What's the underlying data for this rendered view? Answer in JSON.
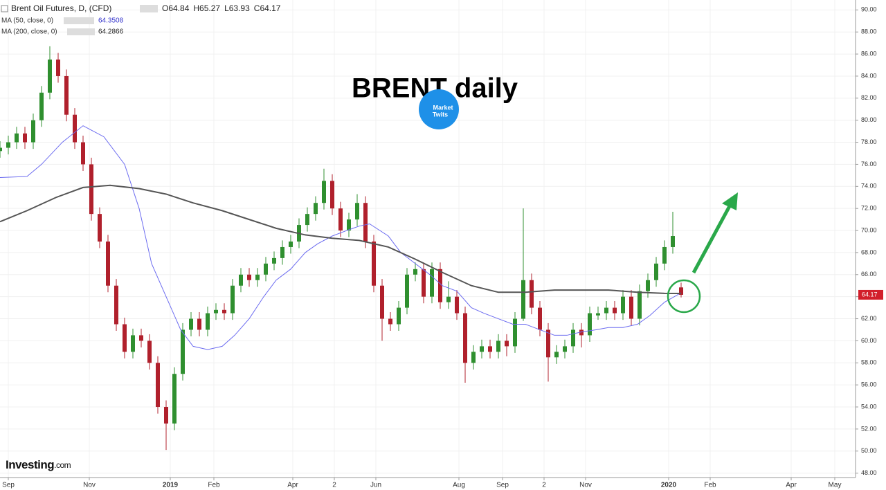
{
  "chart_data": {
    "type": "candlestick",
    "title": "BRENT daily",
    "symbol": "Brent Oil Futures, D, (CFD)",
    "ohlc_text": [
      "O64.84",
      "H65.27",
      "L63.93",
      "C64.17"
    ],
    "watermark_lines": [
      "Market",
      "Twits"
    ],
    "source_parts": [
      "Investing",
      ".com"
    ],
    "up_color": "#2f8f2f",
    "down_color": "#b0202c",
    "x": [
      0,
      4,
      8,
      12,
      16,
      20,
      24,
      28,
      32,
      36,
      40,
      44,
      48,
      52,
      56,
      60,
      64,
      68,
      72,
      76,
      80,
      84,
      88,
      92,
      96,
      100,
      104,
      108,
      112,
      116,
      120,
      124,
      128,
      132,
      136,
      140,
      144,
      148,
      152,
      156,
      160,
      164,
      168,
      172,
      176,
      180,
      184,
      188,
      192,
      196,
      200,
      204,
      208,
      212,
      216,
      220,
      224,
      228,
      232,
      236,
      240,
      244,
      248,
      252,
      256,
      260,
      264,
      268,
      272,
      276,
      280,
      284,
      288,
      292,
      296,
      300,
      304,
      308,
      312,
      316,
      320,
      324,
      328
    ],
    "open": [
      77.2,
      77.5,
      78,
      78.8,
      78,
      80,
      82.5,
      85.5,
      84,
      80.5,
      78,
      76,
      71.5,
      69,
      65,
      61.5,
      59,
      60.5,
      60,
      58,
      54,
      52.5,
      57,
      61,
      62,
      61,
      62.5,
      62.8,
      62.5,
      65,
      66,
      65.5,
      66,
      67,
      67.5,
      68.5,
      69,
      70.5,
      71.5,
      72.5,
      74.5,
      72,
      70,
      71,
      72.5,
      69,
      65,
      62,
      61.5,
      63,
      66,
      66.5,
      64,
      66.5,
      63.5,
      64,
      62.5,
      58,
      59,
      59.5,
      59,
      60,
      59.5,
      62,
      65.5,
      63,
      61,
      58.5,
      59,
      59.5,
      61,
      60.5,
      62.3,
      62.5,
      63,
      62.5,
      64,
      62,
      64.5,
      65.5,
      67,
      68.5,
      64.84
    ],
    "high": [
      78.1,
      78.6,
      79.4,
      79.4,
      80.6,
      83.1,
      86.7,
      86.1,
      84.6,
      81.1,
      78.6,
      76.6,
      72.1,
      69.6,
      65.6,
      62.1,
      61.1,
      61.1,
      60.6,
      58.6,
      54.6,
      57.6,
      61.6,
      62.6,
      62.6,
      63.1,
      63.4,
      63.4,
      65.6,
      66.6,
      66.6,
      66.6,
      67.6,
      68.1,
      69.1,
      69.6,
      71.1,
      72.1,
      73.1,
      75.6,
      75.1,
      72.6,
      71.6,
      73.3,
      73.1,
      69.6,
      65.6,
      62.6,
      63.6,
      66.6,
      67.1,
      67.1,
      67.1,
      67.1,
      65.4,
      64.6,
      63.1,
      59.6,
      60.1,
      60.1,
      60.6,
      60.6,
      62.6,
      72,
      66.1,
      63.6,
      61.6,
      59.6,
      60.1,
      61.6,
      61.6,
      63.1,
      63.1,
      63.6,
      63.6,
      64.6,
      64.6,
      65.1,
      66.1,
      67.6,
      69.1,
      71.7,
      65.27
    ],
    "low": [
      76.6,
      76.9,
      77.4,
      77.4,
      77.4,
      79.4,
      81.9,
      83.4,
      79.9,
      77.4,
      75.4,
      70.9,
      68.4,
      64.4,
      60.9,
      58.4,
      58.4,
      59.4,
      57.4,
      53.4,
      50.1,
      51.9,
      56.4,
      60.4,
      60.4,
      60.4,
      61.9,
      61.9,
      61.9,
      64.4,
      64.9,
      64.9,
      65.4,
      66.4,
      66.9,
      67.9,
      68.4,
      69.9,
      70.9,
      71.9,
      71.4,
      69.4,
      69.4,
      70.4,
      68.4,
      64.4,
      60,
      60.9,
      60.9,
      62.4,
      65.4,
      63.4,
      63.4,
      62.9,
      62.9,
      61.9,
      56.2,
      57.4,
      58.4,
      58.4,
      58.4,
      58.6,
      58.9,
      61.8,
      62.4,
      60.4,
      56.3,
      57.9,
      58.4,
      58.9,
      59.4,
      59.9,
      61.9,
      61.9,
      61.9,
      61.9,
      61.4,
      61.4,
      63.9,
      64.9,
      66.4,
      67.9,
      63.93
    ],
    "close": [
      77.5,
      78,
      78.8,
      78,
      80,
      82.5,
      85.5,
      84,
      80.5,
      78,
      76,
      71.5,
      69,
      65,
      61.5,
      59,
      60.5,
      60,
      58,
      54,
      52.5,
      57,
      61,
      62,
      61,
      62.5,
      62.8,
      62.5,
      65,
      66,
      65.5,
      66,
      67,
      67.5,
      68.5,
      69,
      70.5,
      71.5,
      72.5,
      74.5,
      72,
      70,
      71,
      72.5,
      69,
      65,
      62,
      61.5,
      63,
      66,
      66.5,
      64,
      66.5,
      63.5,
      64,
      62.5,
      58,
      59,
      59.5,
      59,
      60,
      59.5,
      62,
      65.5,
      63,
      61,
      58.5,
      59,
      59.5,
      61,
      60.5,
      62.5,
      62.5,
      63,
      62.5,
      64,
      62,
      64.5,
      65.5,
      67,
      68.5,
      69.5,
      64.17
    ],
    "series": [
      {
        "name": "MA (50, close, 0)",
        "color": "#6b6bf0",
        "value_label": "64.3508",
        "width": 1,
        "x": [
          0,
          13,
          20,
          30,
          40,
          50,
          60,
          67,
          73,
          80,
          87,
          93,
          100,
          107,
          113,
          120,
          127,
          133,
          140,
          147,
          153,
          160,
          167,
          173,
          178,
          187,
          193,
          200,
          207,
          213,
          220,
          227,
          233,
          240,
          247,
          253,
          260,
          267,
          273,
          280,
          287,
          293,
          300,
          307,
          313,
          320,
          328
        ],
        "values": [
          74.8,
          74.9,
          76,
          78,
          79.5,
          78.5,
          76,
          72,
          67,
          64,
          61,
          59.5,
          59.2,
          59.5,
          60.5,
          62,
          64,
          65.5,
          66.5,
          68,
          68.8,
          69.5,
          70,
          70.4,
          70.6,
          69.5,
          68,
          67,
          66,
          65,
          64.5,
          63,
          62.5,
          62,
          61.5,
          61.5,
          61,
          60.5,
          60.5,
          60.8,
          61,
          61.2,
          61.2,
          61.5,
          62.3,
          63.5,
          64.35
        ]
      },
      {
        "name": "MA (200, close, 0)",
        "color": "#555555",
        "value_label": "64.2866",
        "width": 2,
        "x": [
          0,
          13,
          27,
          40,
          53,
          67,
          80,
          93,
          107,
          120,
          133,
          147,
          160,
          173,
          187,
          200,
          213,
          227,
          240,
          253,
          267,
          280,
          293,
          307,
          320,
          328
        ],
        "values": [
          70.8,
          71.8,
          73,
          73.9,
          74.1,
          73.8,
          73.3,
          72.5,
          71.8,
          71,
          70.2,
          69.6,
          69.3,
          69.1,
          68.5,
          67.4,
          66.2,
          65,
          64.4,
          64.4,
          64.6,
          64.6,
          64.6,
          64.4,
          64.3,
          64.29
        ]
      }
    ],
    "last_price_label": "64.17",
    "xlim": [
      0,
      412
    ],
    "xticks": [
      {
        "value": 4,
        "label": "Sep"
      },
      {
        "value": 43,
        "label": "Nov"
      },
      {
        "value": 82,
        "label": "2019"
      },
      {
        "value": 103,
        "label": "Feb"
      },
      {
        "value": 141,
        "label": "Apr"
      },
      {
        "value": 161,
        "label": "2"
      },
      {
        "value": 181,
        "label": "Jun"
      },
      {
        "value": 221,
        "label": "Aug"
      },
      {
        "value": 242,
        "label": "Sep"
      },
      {
        "value": 262,
        "label": "2"
      },
      {
        "value": 282,
        "label": "Nov"
      },
      {
        "value": 322,
        "label": "2020"
      },
      {
        "value": 342,
        "label": "Feb"
      },
      {
        "value": 381,
        "label": "Apr"
      },
      {
        "value": 402,
        "label": "May"
      }
    ],
    "ylim": [
      47.6,
      90.9
    ],
    "yticks": [
      {
        "value": 48,
        "label": "48.00"
      },
      {
        "value": 50,
        "label": "50.00"
      },
      {
        "value": 52,
        "label": "52.00"
      },
      {
        "value": 54,
        "label": "54.00"
      },
      {
        "value": 56,
        "label": "56.00"
      },
      {
        "value": 58,
        "label": "58.00"
      },
      {
        "value": 60,
        "label": "60.00"
      },
      {
        "value": 62,
        "label": "62.00"
      },
      {
        "value": 64,
        "label": "64.00"
      },
      {
        "value": 66,
        "label": "66.00"
      },
      {
        "value": 68,
        "label": "68.00"
      },
      {
        "value": 70,
        "label": "70.00"
      },
      {
        "value": 72,
        "label": "72.00"
      },
      {
        "value": 74,
        "label": "74.00"
      },
      {
        "value": 76,
        "label": "76.00"
      },
      {
        "value": 78,
        "label": "78.00"
      },
      {
        "value": 80,
        "label": "80.00"
      },
      {
        "value": 82,
        "label": "82.00"
      },
      {
        "value": 84,
        "label": "84.00"
      },
      {
        "value": 86,
        "label": "86.00"
      },
      {
        "value": 88,
        "label": "88.00"
      },
      {
        "value": 90,
        "label": "90.00"
      }
    ],
    "grid": true
  }
}
